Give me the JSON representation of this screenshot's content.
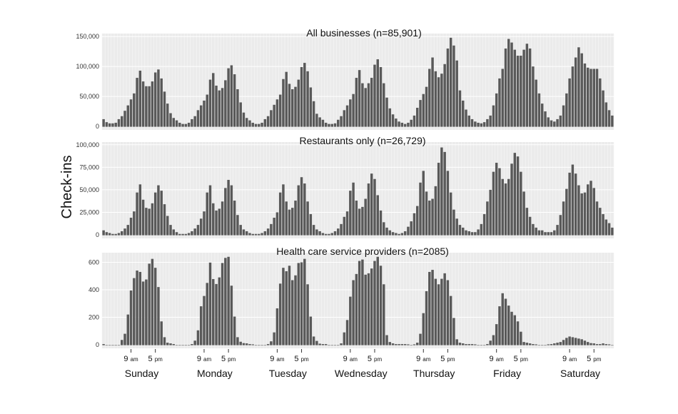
{
  "chart_data": {
    "type": "bar",
    "ylabel": "Check-ins",
    "xlabel": "",
    "days": [
      "Sunday",
      "Monday",
      "Tuesday",
      "Wednesday",
      "Thursday",
      "Friday",
      "Saturday"
    ],
    "hour_tick_labels": [
      {
        "num": "9",
        "suffix": "am",
        "hour": 9
      },
      {
        "num": "5",
        "suffix": "pm",
        "hour": 17
      }
    ],
    "grid": true,
    "panels": [
      {
        "title": "All businesses (n=85,901)",
        "ylim": [
          0,
          155000
        ],
        "yticks": [
          0,
          50000,
          100000,
          150000
        ],
        "ytick_labels": [
          "0",
          "50,000",
          "100,000",
          "150,000"
        ],
        "values": [
          12000,
          7000,
          5000,
          5000,
          6000,
          12000,
          17000,
          26000,
          35000,
          45000,
          55000,
          81000,
          93000,
          75000,
          67000,
          67000,
          75000,
          90000,
          95000,
          80000,
          58000,
          38000,
          22000,
          14000,
          10000,
          6000,
          4000,
          4000,
          6000,
          12000,
          17000,
          27000,
          35000,
          43000,
          53000,
          78000,
          89000,
          68000,
          60000,
          64000,
          77000,
          97000,
          102000,
          87000,
          62000,
          40000,
          23000,
          14000,
          10000,
          6000,
          4000,
          4000,
          6000,
          12000,
          17000,
          27000,
          36000,
          45000,
          53000,
          79000,
          91000,
          71000,
          62000,
          66000,
          78000,
          99000,
          106000,
          92000,
          65000,
          42000,
          21000,
          15000,
          11000,
          6000,
          4000,
          4000,
          5000,
          11000,
          17000,
          27000,
          35000,
          45000,
          54000,
          81000,
          94000,
          72000,
          64000,
          72000,
          81000,
          103000,
          112000,
          99000,
          72000,
          48000,
          30000,
          20000,
          13000,
          8000,
          6000,
          4000,
          6000,
          11000,
          18000,
          31000,
          44000,
          54000,
          66000,
          96000,
          115000,
          92000,
          82000,
          88000,
          104000,
          130000,
          148000,
          135000,
          110000,
          60000,
          43000,
          28000,
          18000,
          12000,
          8000,
          6000,
          5000,
          7000,
          12000,
          18000,
          35000,
          55000,
          80000,
          96000,
          130000,
          146000,
          140000,
          128000,
          118000,
          118000,
          128000,
          138000,
          130000,
          100000,
          78000,
          55000,
          38000,
          25000,
          15000,
          10000,
          8000,
          12000,
          18000,
          35000,
          55000,
          80000,
          100000,
          115000,
          132000,
          122000,
          105000,
          98000,
          96000,
          96000,
          96000,
          80000,
          60000,
          40000,
          27000,
          18000
        ]
      },
      {
        "title": "Restaurants only (n=26,729)",
        "ylim": [
          0,
          103000
        ],
        "yticks": [
          0,
          25000,
          50000,
          75000,
          100000
        ],
        "ytick_labels": [
          "0",
          "25,000",
          "50,000",
          "75,000",
          "100,000"
        ],
        "values": [
          5000,
          3000,
          2000,
          1000,
          1000,
          2000,
          4000,
          7000,
          11000,
          19000,
          26000,
          47000,
          56000,
          39000,
          30000,
          29000,
          35000,
          47000,
          55000,
          49000,
          34000,
          21000,
          11000,
          6000,
          3000,
          1000,
          1000,
          1000,
          2000,
          4000,
          7000,
          11000,
          18000,
          26000,
          47000,
          55000,
          35000,
          27000,
          29000,
          37000,
          52000,
          61000,
          55000,
          38000,
          22000,
          11000,
          6000,
          4000,
          2000,
          1000,
          1000,
          1000,
          2000,
          4000,
          7000,
          12000,
          19000,
          25000,
          47000,
          56000,
          37000,
          28000,
          30000,
          38000,
          55000,
          64000,
          57000,
          37000,
          23000,
          11000,
          6000,
          4000,
          2000,
          1000,
          1000,
          2000,
          4000,
          7000,
          12000,
          20000,
          26000,
          49000,
          58000,
          38000,
          29000,
          31000,
          40000,
          57000,
          68000,
          62000,
          44000,
          27000,
          14000,
          8000,
          5000,
          3000,
          2000,
          1000,
          2000,
          4000,
          9000,
          15000,
          24000,
          32000,
          58000,
          71000,
          48000,
          38000,
          40000,
          54000,
          80000,
          97000,
          92000,
          71000,
          47000,
          28000,
          18000,
          11000,
          8000,
          5000,
          4000,
          3000,
          3000,
          6000,
          12000,
          23000,
          37000,
          50000,
          70000,
          80000,
          74000,
          62000,
          57000,
          62000,
          79000,
          91000,
          87000,
          70000,
          48000,
          30000,
          20000,
          12000,
          8000,
          5000,
          5000,
          3000,
          3000,
          3000,
          5000,
          11000,
          22000,
          37000,
          51000,
          69000,
          78000,
          68000,
          55000,
          46000,
          47000,
          56000,
          60000,
          52000,
          37000,
          30000,
          23000,
          17000,
          13000,
          8000
        ]
      },
      {
        "title": "Health care service providers (n=2085)",
        "ylim": [
          0,
          670
        ],
        "yticks": [
          0,
          200,
          400,
          600
        ],
        "ytick_labels": [
          "0",
          "200",
          "400",
          "600"
        ],
        "values": [
          5,
          0,
          0,
          0,
          0,
          0,
          35,
          80,
          220,
          395,
          485,
          540,
          530,
          460,
          475,
          590,
          625,
          560,
          420,
          170,
          55,
          15,
          10,
          5,
          0,
          0,
          0,
          0,
          0,
          5,
          30,
          105,
          280,
          355,
          450,
          598,
          478,
          442,
          490,
          595,
          632,
          640,
          430,
          205,
          55,
          22,
          12,
          10,
          5,
          3,
          0,
          0,
          0,
          0,
          5,
          25,
          90,
          265,
          445,
          560,
          535,
          575,
          470,
          505,
          595,
          600,
          625,
          440,
          205,
          60,
          28,
          8,
          5,
          5,
          0,
          0,
          0,
          0,
          10,
          90,
          180,
          350,
          470,
          515,
          610,
          620,
          510,
          520,
          555,
          610,
          640,
          575,
          440,
          70,
          20,
          10,
          5,
          5,
          5,
          5,
          3,
          0,
          3,
          15,
          80,
          230,
          390,
          530,
          545,
          480,
          440,
          480,
          520,
          470,
          355,
          195,
          40,
          15,
          10,
          5,
          5,
          5,
          3,
          0,
          0,
          0,
          5,
          30,
          70,
          150,
          280,
          375,
          335,
          285,
          240,
          215,
          170,
          95,
          20,
          15,
          10,
          5,
          3,
          0,
          0,
          0,
          3,
          5,
          10,
          15,
          20,
          35,
          50,
          60,
          55,
          50,
          45,
          40,
          30,
          20,
          12,
          10,
          5,
          5,
          10,
          5,
          3,
          0
        ]
      }
    ]
  }
}
